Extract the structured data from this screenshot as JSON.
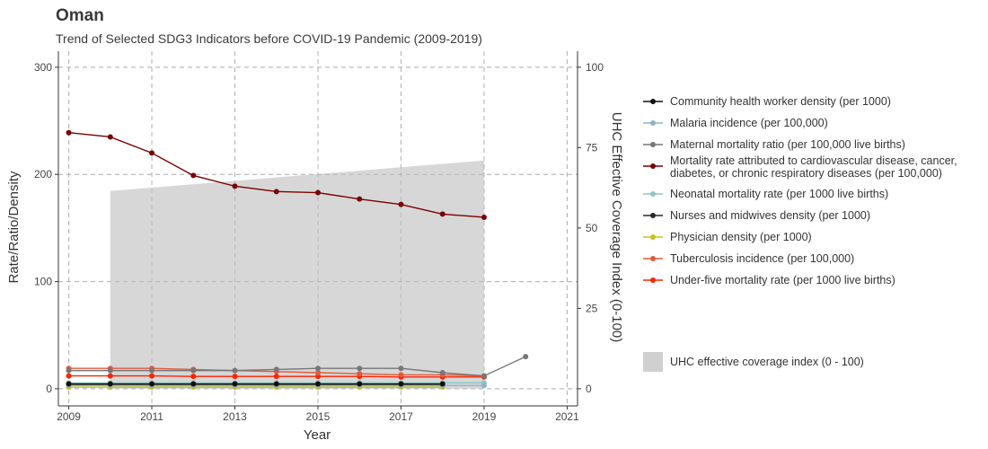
{
  "chart_data": {
    "type": "line",
    "title": "Oman",
    "subtitle": "Trend of Selected SDG3 Indicators before COVID-19 Pandemic (2009-2019)",
    "xlabel": "Year",
    "ylabel": "Rate/Ratio/Density",
    "y2label": "UHC Effective Coverage Index (0-100)",
    "xlim": [
      2008.75,
      2021.25
    ],
    "ylim": [
      -16,
      315
    ],
    "y2lim": [
      -5.33,
      105
    ],
    "x_ticks": [
      2009,
      2011,
      2013,
      2015,
      2017,
      2019,
      2021
    ],
    "y_ticks": [
      0,
      100,
      200,
      300
    ],
    "y2_ticks": [
      0,
      25,
      50,
      75,
      100
    ],
    "grid": true,
    "legend_position": "right",
    "series": [
      {
        "name": "Community health worker density (per 1000)",
        "color": "#111111",
        "x": [
          2009,
          2010,
          2011,
          2012,
          2013,
          2014,
          2015,
          2016,
          2017,
          2018
        ],
        "y": [
          4.5,
          4.5,
          4.5,
          4.5,
          4.5,
          4.5,
          4.5,
          4.5,
          4.5,
          4.5
        ]
      },
      {
        "name": "Malaria incidence (per 100,000)",
        "color": "#8fb3c9",
        "x": [
          2009,
          2010,
          2011,
          2012,
          2013,
          2014,
          2015,
          2016,
          2017,
          2018,
          2019
        ],
        "y": [
          3,
          3,
          3,
          3,
          3,
          3,
          3,
          3,
          3,
          3,
          3
        ]
      },
      {
        "name": "Maternal mortality ratio (per 100,000 live births)",
        "color": "#777777",
        "x": [
          2009,
          2010,
          2011,
          2012,
          2013,
          2014,
          2015,
          2016,
          2017,
          2018,
          2019,
          2020
        ],
        "y": [
          17,
          17,
          17,
          17,
          17,
          18,
          19,
          19,
          19,
          15,
          12,
          30
        ]
      },
      {
        "name": "Mortality rate attributed to cardiovascular disease, cancer, diabetes, or chronic respiratory diseases (per 100,000)",
        "color": "#7a0000",
        "label_lines": [
          "Mortality rate attributed to cardiovascular disease, cancer,",
          "diabetes, or chronic respiratory diseases (per 100,000)"
        ],
        "x": [
          2009,
          2010,
          2011,
          2012,
          2013,
          2014,
          2015,
          2016,
          2017,
          2018,
          2019
        ],
        "y": [
          239,
          235,
          220,
          199,
          189,
          184,
          183,
          177,
          172,
          163,
          160
        ]
      },
      {
        "name": "Neonatal mortality rate (per 1000 live births)",
        "color": "#8cc7c0",
        "x": [
          2009,
          2010,
          2011,
          2012,
          2013,
          2014,
          2015,
          2016,
          2017,
          2018,
          2019
        ],
        "y": [
          5.5,
          5.5,
          5.5,
          5.5,
          5.5,
          5.5,
          5.5,
          5.5,
          5.5,
          5.5,
          5.5
        ]
      },
      {
        "name": "Nurses and midwives density (per 1000)",
        "color": "#2a2a2a",
        "x": [
          2009,
          2010,
          2011,
          2012,
          2013,
          2014,
          2015,
          2016,
          2017,
          2018
        ],
        "y": [
          4,
          4,
          4,
          4,
          4,
          4,
          4,
          4,
          4,
          4
        ]
      },
      {
        "name": "Physician density (per 1000)",
        "color": "#c3c31a",
        "x": [
          2009,
          2010,
          2011,
          2012,
          2013,
          2014,
          2015,
          2016,
          2017,
          2018
        ],
        "y": [
          1.5,
          1.5,
          1.5,
          1.5,
          1.5,
          1.5,
          1.5,
          1.5,
          1.5,
          1.5
        ]
      },
      {
        "name": "Tuberculosis incidence (per 100,000)",
        "color": "#e25b3c",
        "x": [
          2009,
          2010,
          2011,
          2012,
          2013,
          2014,
          2015,
          2016,
          2017,
          2018,
          2019
        ],
        "y": [
          19,
          19,
          19,
          18,
          17,
          16,
          15,
          14,
          13,
          13,
          12
        ]
      },
      {
        "name": "Under-five mortality rate (per 1000 live births)",
        "color": "#ff2200",
        "x": [
          2009,
          2010,
          2011,
          2012,
          2013,
          2014,
          2015,
          2016,
          2017,
          2018,
          2019
        ],
        "y": [
          12,
          12,
          12,
          11.5,
          11.5,
          11.5,
          11.5,
          11.5,
          11,
          11,
          11
        ]
      }
    ],
    "area": {
      "name": "UHC effective coverage index (0 - 100)",
      "color": "#d0d0d0",
      "axis": "y2",
      "x": [
        2010,
        2019
      ],
      "y": [
        61.5,
        71
      ]
    }
  }
}
